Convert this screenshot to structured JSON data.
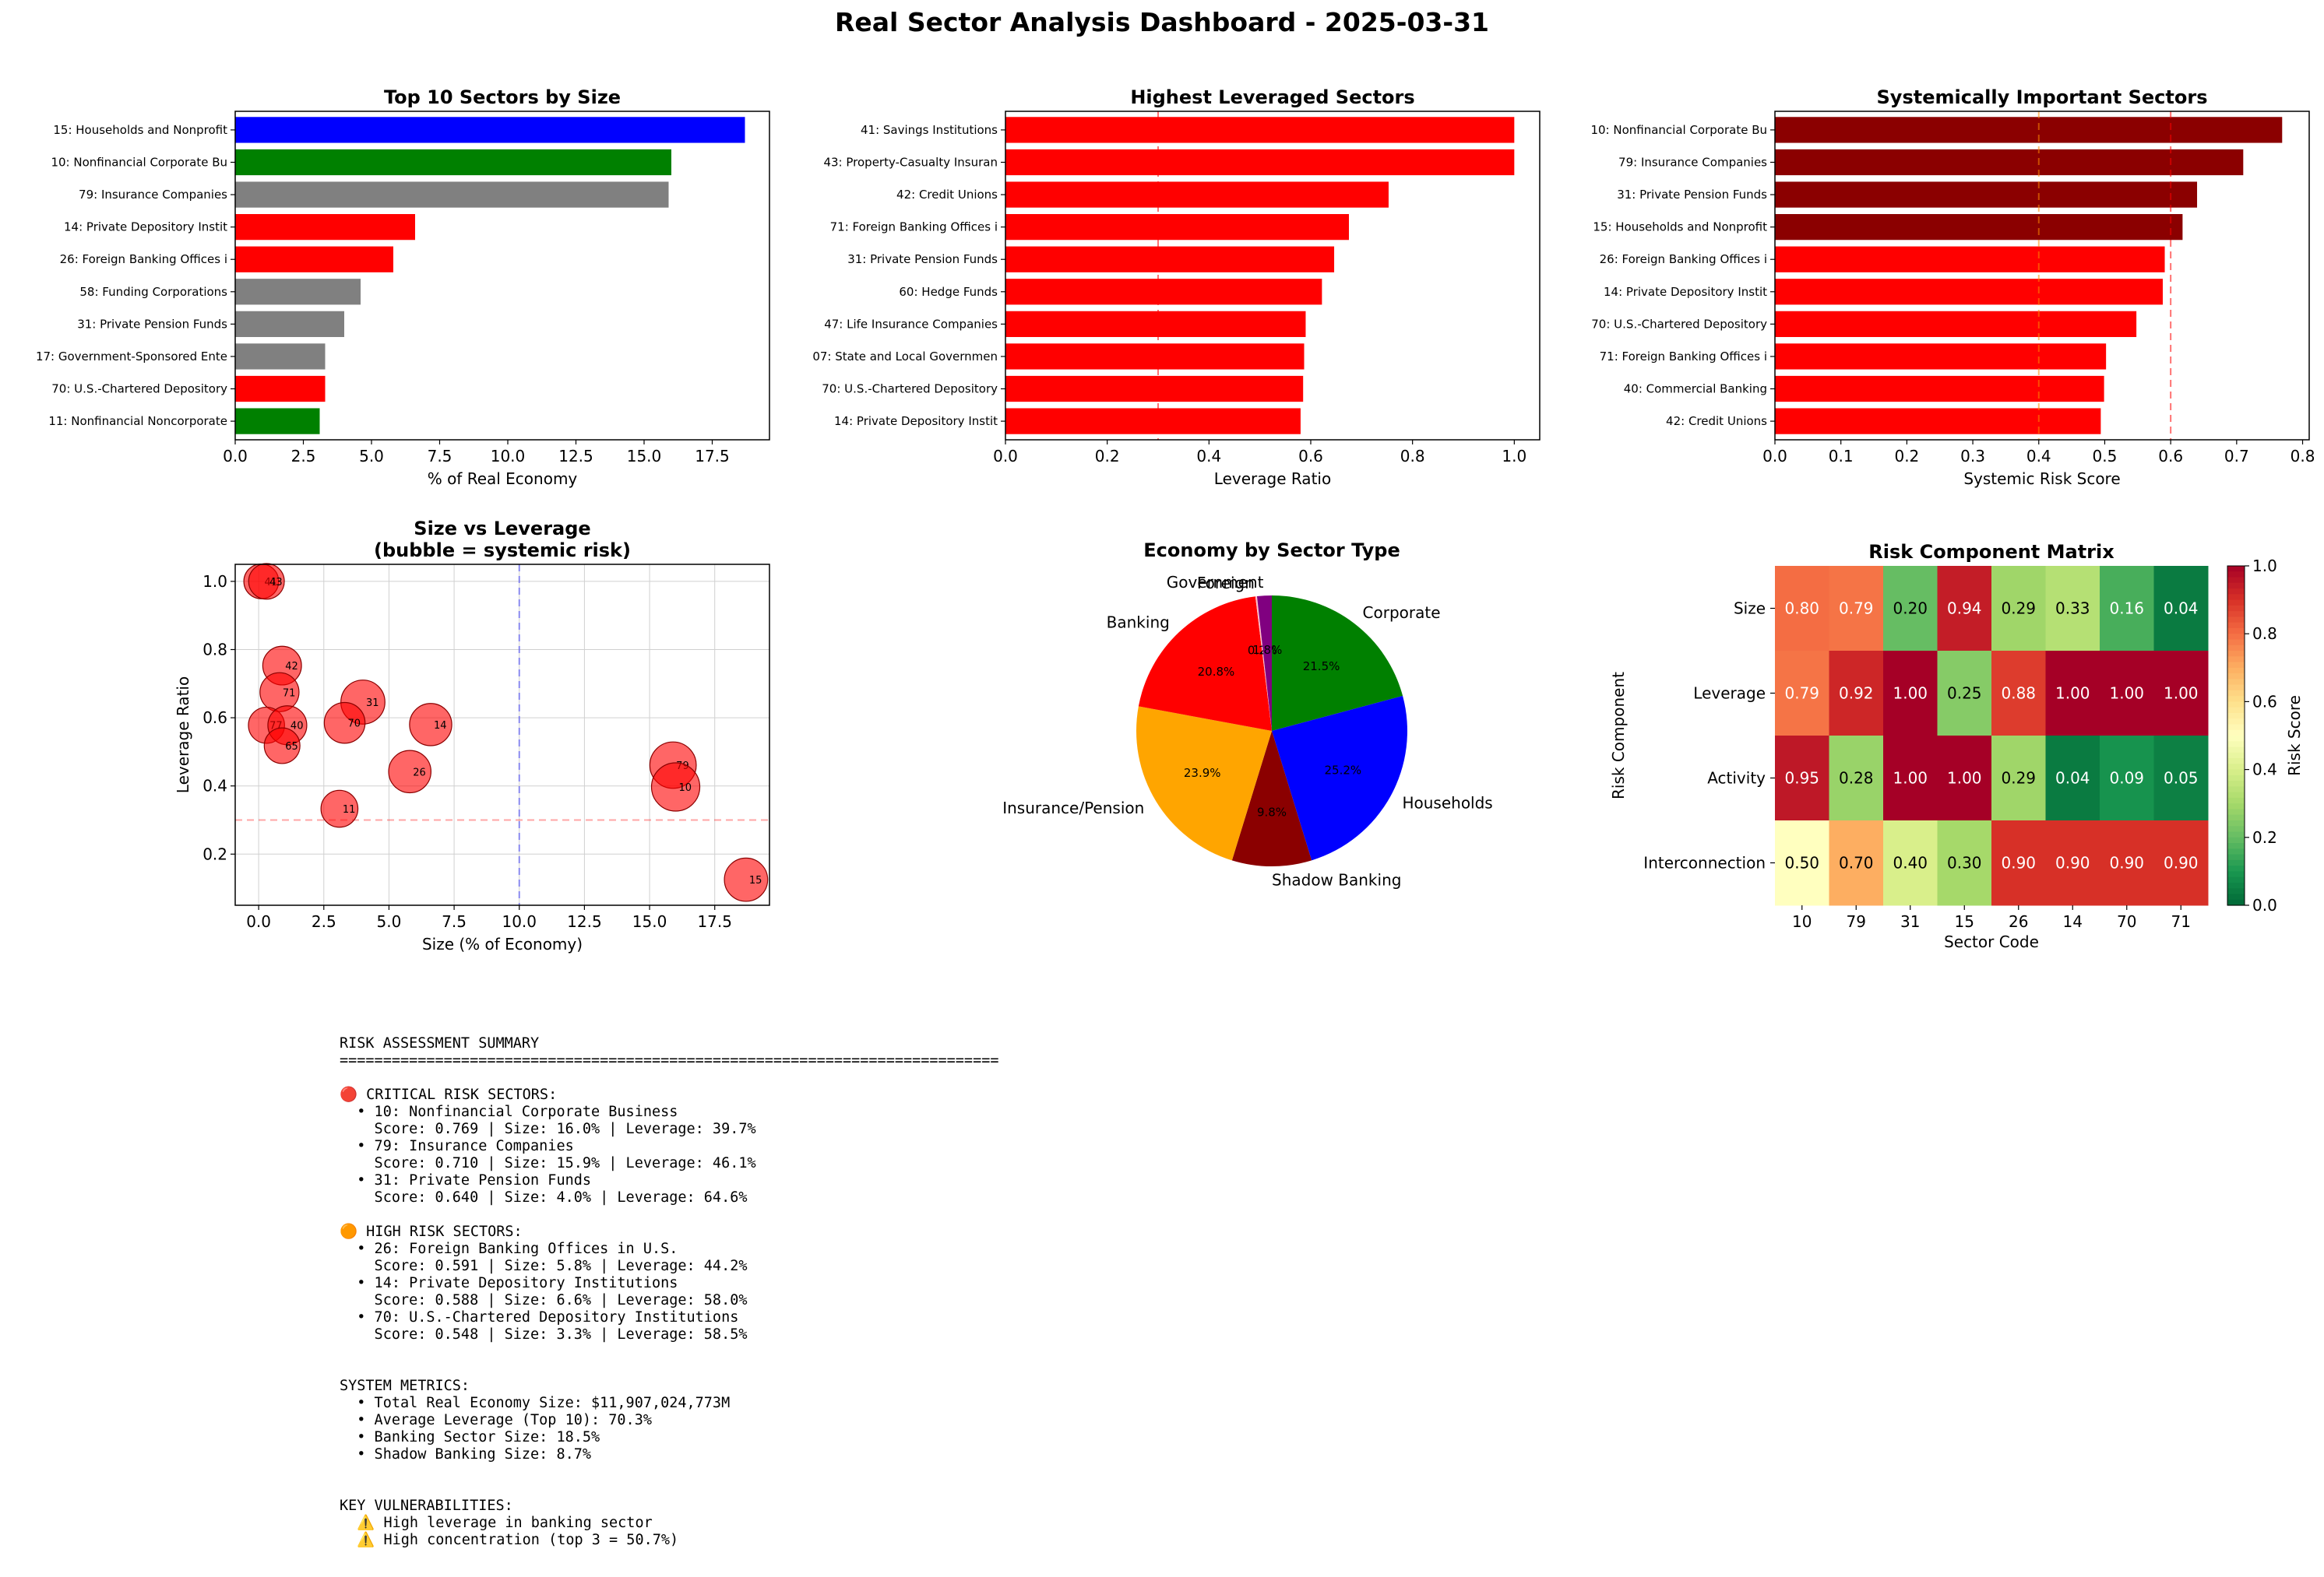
{
  "suptitle": "Real Sector Analysis Dashboard - 2025-03-31",
  "chart_data": [
    {
      "type": "bar",
      "orientation": "horizontal",
      "title": "Top 10 Sectors by Size",
      "xlabel": "% of Real Economy",
      "ylabel": "",
      "xlim": [
        0,
        19.6
      ],
      "xticks": [
        "0.0",
        "2.5",
        "5.0",
        "7.5",
        "10.0",
        "12.5",
        "15.0",
        "17.5"
      ],
      "categories": [
        "15: Households and Nonprofit ",
        "10: Nonfinancial Corporate Bu",
        "79: Insurance Companies",
        "14: Private Depository Instit",
        "26: Foreign Banking Offices i",
        "58: Funding Corporations",
        "31: Private Pension Funds",
        "17: Government-Sponsored Ente",
        "70: U.S.-Chartered Depository",
        "11: Nonfinancial Noncorporate"
      ],
      "values": [
        18.7,
        16.0,
        15.9,
        6.6,
        5.8,
        4.6,
        4.0,
        3.3,
        3.3,
        3.1
      ],
      "colors": [
        "#0000ff",
        "#008000",
        "#808080",
        "#ff0000",
        "#ff0000",
        "#808080",
        "#808080",
        "#808080",
        "#ff0000",
        "#008000"
      ]
    },
    {
      "type": "bar",
      "orientation": "horizontal",
      "title": "Highest Leveraged Sectors",
      "xlabel": "Leverage Ratio",
      "ylabel": "",
      "xlim": [
        0,
        1.05
      ],
      "xticks": [
        "0.0",
        "0.2",
        "0.4",
        "0.6",
        "0.8",
        "1.0"
      ],
      "reference_lines": [
        0.3
      ],
      "categories": [
        "41: Savings Institutions",
        "43: Property-Casualty Insuran",
        "42: Credit Unions",
        "71: Foreign Banking Offices i",
        "31: Private Pension Funds",
        "60: Hedge Funds",
        "47: Life Insurance Companies",
        "07: State and Local Governmen",
        "70: U.S.-Chartered Depository",
        "14: Private Depository Instit"
      ],
      "values": [
        1.0,
        1.0,
        0.753,
        0.675,
        0.646,
        0.622,
        0.59,
        0.587,
        0.585,
        0.58
      ],
      "colors": [
        "#ff0000",
        "#ff0000",
        "#ff0000",
        "#ff0000",
        "#ff0000",
        "#ff0000",
        "#ff0000",
        "#ff0000",
        "#ff0000",
        "#ff0000"
      ]
    },
    {
      "type": "bar",
      "orientation": "horizontal",
      "title": "Systemically Important Sectors",
      "xlabel": "Systemic Risk Score",
      "ylabel": "",
      "xlim": [
        0,
        0.81
      ],
      "xticks": [
        "0.0",
        "0.1",
        "0.2",
        "0.3",
        "0.4",
        "0.5",
        "0.6",
        "0.7",
        "0.8"
      ],
      "reference_lines": [
        0.4,
        0.6
      ],
      "categories": [
        "10: Nonfinancial Corporate Bu",
        "79: Insurance Companies",
        "31: Private Pension Funds",
        "15: Households and Nonprofit ",
        "26: Foreign Banking Offices i",
        "14: Private Depository Instit",
        "70: U.S.-Chartered Depository",
        "71: Foreign Banking Offices i",
        "40: Commercial Banking",
        "42: Credit Unions"
      ],
      "values": [
        0.769,
        0.71,
        0.64,
        0.618,
        0.591,
        0.588,
        0.548,
        0.502,
        0.499,
        0.494
      ],
      "colors": [
        "#8b0000",
        "#8b0000",
        "#8b0000",
        "#8b0000",
        "#ff0000",
        "#ff0000",
        "#ff0000",
        "#ff0000",
        "#ff0000",
        "#ff0000"
      ]
    },
    {
      "type": "scatter",
      "title": "Size vs Leverage",
      "subtitle": "(bubble = systemic risk)",
      "xlabel": "Size (% of Economy)",
      "ylabel": "Leverage Ratio",
      "xlim": [
        -0.9,
        19.6
      ],
      "ylim": [
        0.05,
        1.05
      ],
      "xticks": [
        0,
        2.5,
        5,
        7.5,
        10,
        12.5,
        15,
        17.5
      ],
      "xtick_labels": [
        "0.0",
        "2.5",
        "5.0",
        "7.5",
        "10.0",
        "12.5",
        "15.0",
        "17.5"
      ],
      "yticks": [
        0.2,
        0.4,
        0.6,
        0.8,
        1.0
      ],
      "ytick_labels": [
        "0.2",
        "0.4",
        "0.6",
        "0.8",
        "1.0"
      ],
      "reference_lines": {
        "x": 10,
        "y": 0.3
      },
      "grid": true,
      "points": [
        {
          "label": "41",
          "x": 0.1,
          "y": 1.0,
          "risk": 0.4
        },
        {
          "label": "43",
          "x": 0.3,
          "y": 1.0,
          "risk": 0.42
        },
        {
          "label": "42",
          "x": 0.9,
          "y": 0.753,
          "risk": 0.494
        },
        {
          "label": "71",
          "x": 0.8,
          "y": 0.675,
          "risk": 0.502
        },
        {
          "label": "77",
          "x": 0.3,
          "y": 0.578,
          "risk": 0.43
        },
        {
          "label": "40",
          "x": 1.1,
          "y": 0.578,
          "risk": 0.499
        },
        {
          "label": "65",
          "x": 0.9,
          "y": 0.518,
          "risk": 0.42
        },
        {
          "label": "31",
          "x": 4.0,
          "y": 0.646,
          "risk": 0.64
        },
        {
          "label": "70",
          "x": 3.3,
          "y": 0.585,
          "risk": 0.548
        },
        {
          "label": "14",
          "x": 6.6,
          "y": 0.58,
          "risk": 0.588
        },
        {
          "label": "26",
          "x": 5.8,
          "y": 0.442,
          "risk": 0.591
        },
        {
          "label": "11",
          "x": 3.1,
          "y": 0.333,
          "risk": 0.45
        },
        {
          "label": "79",
          "x": 15.9,
          "y": 0.461,
          "risk": 0.71
        },
        {
          "label": "10",
          "x": 16.0,
          "y": 0.397,
          "risk": 0.769
        },
        {
          "label": "15",
          "x": 18.7,
          "y": 0.125,
          "risk": 0.618
        }
      ]
    },
    {
      "type": "pie",
      "title": "Economy by Sector Type",
      "slices": [
        {
          "label": "Corporate",
          "value": 21.5,
          "pct": "21.5%",
          "color": "#008000"
        },
        {
          "label": "Households",
          "value": 25.2,
          "pct": "25.2%",
          "color": "#0000ff"
        },
        {
          "label": "Shadow Banking",
          "value": 9.8,
          "pct": "9.8%",
          "color": "#8b0000"
        },
        {
          "label": "Insurance/Pension",
          "value": 23.9,
          "pct": "23.9%",
          "color": "#ffa500"
        },
        {
          "label": "Banking",
          "value": 20.8,
          "pct": "20.8%",
          "color": "#ff0000"
        },
        {
          "label": "Foreign",
          "value": 0.2,
          "pct": "0.2%",
          "color": "#ffc0cb"
        },
        {
          "label": "Government",
          "value": 1.8,
          "pct": "1.8%",
          "color": "#800080"
        }
      ]
    },
    {
      "type": "heatmap",
      "title": "Risk Component Matrix",
      "xlabel": "Sector Code",
      "ylabel": "Risk Component",
      "colorbar_label": "Risk Score",
      "colorbar_ticks": [
        "0.0",
        "0.2",
        "0.4",
        "0.6",
        "0.8",
        "1.0"
      ],
      "vmin": 0,
      "vmax": 1,
      "x_categories": [
        "10",
        "79",
        "31",
        "15",
        "26",
        "14",
        "70",
        "71"
      ],
      "y_categories": [
        "Size",
        "Leverage",
        "Activity",
        "Interconnection"
      ],
      "values": [
        [
          0.8,
          0.79,
          0.2,
          0.94,
          0.29,
          0.33,
          0.16,
          0.04
        ],
        [
          0.79,
          0.92,
          1.0,
          0.25,
          0.88,
          1.0,
          1.0,
          1.0
        ],
        [
          0.95,
          0.28,
          1.0,
          1.0,
          0.29,
          0.04,
          0.09,
          0.05
        ],
        [
          0.5,
          0.7,
          0.4,
          0.3,
          0.9,
          0.9,
          0.9,
          0.9
        ]
      ]
    }
  ],
  "summary": {
    "lines": [
      "RISK ASSESSMENT SUMMARY",
      "============================================================================",
      "",
      "🔴 CRITICAL RISK SECTORS:",
      "  • 10: Nonfinancial Corporate Business",
      "    Score: 0.769 | Size: 16.0% | Leverage: 39.7%",
      "  • 79: Insurance Companies",
      "    Score: 0.710 | Size: 15.9% | Leverage: 46.1%",
      "  • 31: Private Pension Funds",
      "    Score: 0.640 | Size: 4.0% | Leverage: 64.6%",
      "",
      "🟠 HIGH RISK SECTORS:",
      "  • 26: Foreign Banking Offices in U.S.",
      "    Score: 0.591 | Size: 5.8% | Leverage: 44.2%",
      "  • 14: Private Depository Institutions",
      "    Score: 0.588 | Size: 6.6% | Leverage: 58.0%",
      "  • 70: U.S.-Chartered Depository Institutions",
      "    Score: 0.548 | Size: 3.3% | Leverage: 58.5%",
      "",
      "",
      "SYSTEM METRICS:",
      "  • Total Real Economy Size: $11,907,024,773M",
      "  • Average Leverage (Top 10): 70.3%",
      "  • Banking Sector Size: 18.5%",
      "  • Shadow Banking Size: 8.7%",
      "",
      "",
      "KEY VULNERABILITIES:",
      "  ⚠️ High leverage in banking sector",
      "  ⚠️ High concentration (top 3 = 50.7%)"
    ]
  }
}
